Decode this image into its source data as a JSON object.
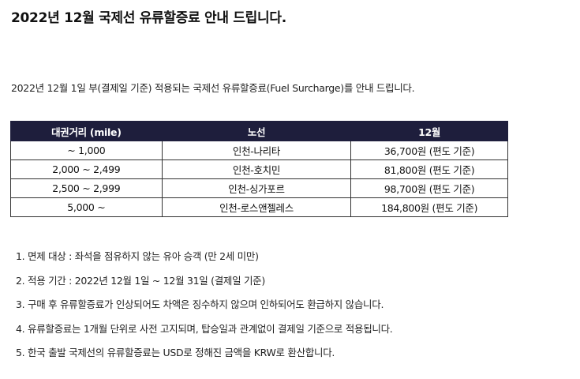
{
  "title": "2022년 12월 국제선 유류할증료 안내 드립니다.",
  "intro": "2022년 12월 1일 부(결제일 기준) 적용되는 국제선 유류할증료(Fuel Surcharge)를 안내 드립니다.",
  "table": {
    "headers": [
      "대권거리 (mile)",
      "노선",
      "12월"
    ],
    "rows": [
      {
        "distance": "~ 1,000",
        "route": "인천-나리타",
        "fee": "36,700원 (편도 기준)"
      },
      {
        "distance": "2,000 ~ 2,499",
        "route": "인천-호치민",
        "fee": "81,800원 (편도 기준)"
      },
      {
        "distance": "2,500 ~ 2,999",
        "route": "인천-싱가포르",
        "fee": "98,700원 (편도 기준)"
      },
      {
        "distance": "5,000 ~",
        "route": "인천-로스앤젤레스",
        "fee": "184,800원 (편도 기준)"
      }
    ]
  },
  "notes": [
    "1. 면제 대상 : 좌석을 점유하지 않는 유아 승객 (만 2세 미만)",
    "2. 적용 기간 : 2022년 12월 1일 ~ 12월 31일 (결제일 기준)",
    "3. 구매 후 유류할증료가 인상되어도 차액은 징수하지 않으며 인하되어도 환급하지 않습니다.",
    "4. 유류할증료는 1개월 단위로 사전 고지되며, 탑승일과 관계없이 결제일 기준으로 적용됩니다.",
    "5. 한국 출발 국제선의 유류할증료는 USD로 정해진 금액을 KRW로 환산합니다."
  ],
  "colors": {
    "header_bg": "#1e1e3c",
    "header_text": "#ffffff",
    "border": "#333333"
  }
}
